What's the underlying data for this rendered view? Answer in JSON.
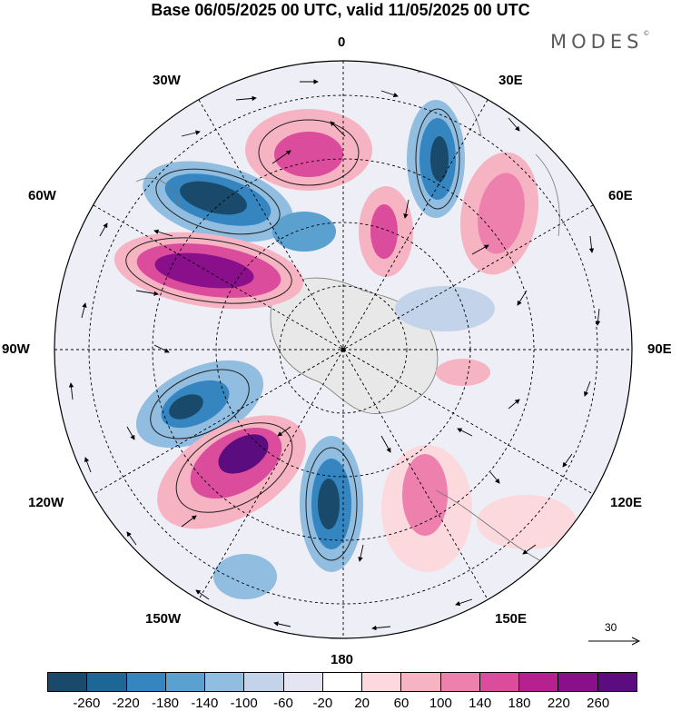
{
  "title": "Base 06/05/2025 00 UTC, valid 11/05/2025 00 UTC",
  "brand": "MODES",
  "brand_mark": "©",
  "lon_labels": {
    "l0": "0",
    "l30e": "30E",
    "l60e": "60E",
    "l90e": "90E",
    "l120e": "120E",
    "l150e": "150E",
    "l180": "180",
    "l150w": "150W",
    "l120w": "120W",
    "l90w": "90W",
    "l60w": "60W",
    "l30w": "30W"
  },
  "reference_vector": "30",
  "colorbar": {
    "colors": [
      "#1a4a6b",
      "#1d6796",
      "#3585c0",
      "#5aa1d0",
      "#90bde0",
      "#c3d3ea",
      "#e5e4f2",
      "#ffffff",
      "#fbd9dd",
      "#f6b3c2",
      "#ee80ad",
      "#dc4c9c",
      "#b7208f",
      "#8a0f8a",
      "#5b0c7e"
    ],
    "ticks": [
      "-260",
      "-220",
      "-180",
      "-140",
      "-100",
      "-60",
      "-20",
      "20",
      "60",
      "100",
      "140",
      "180",
      "220",
      "260"
    ]
  }
}
